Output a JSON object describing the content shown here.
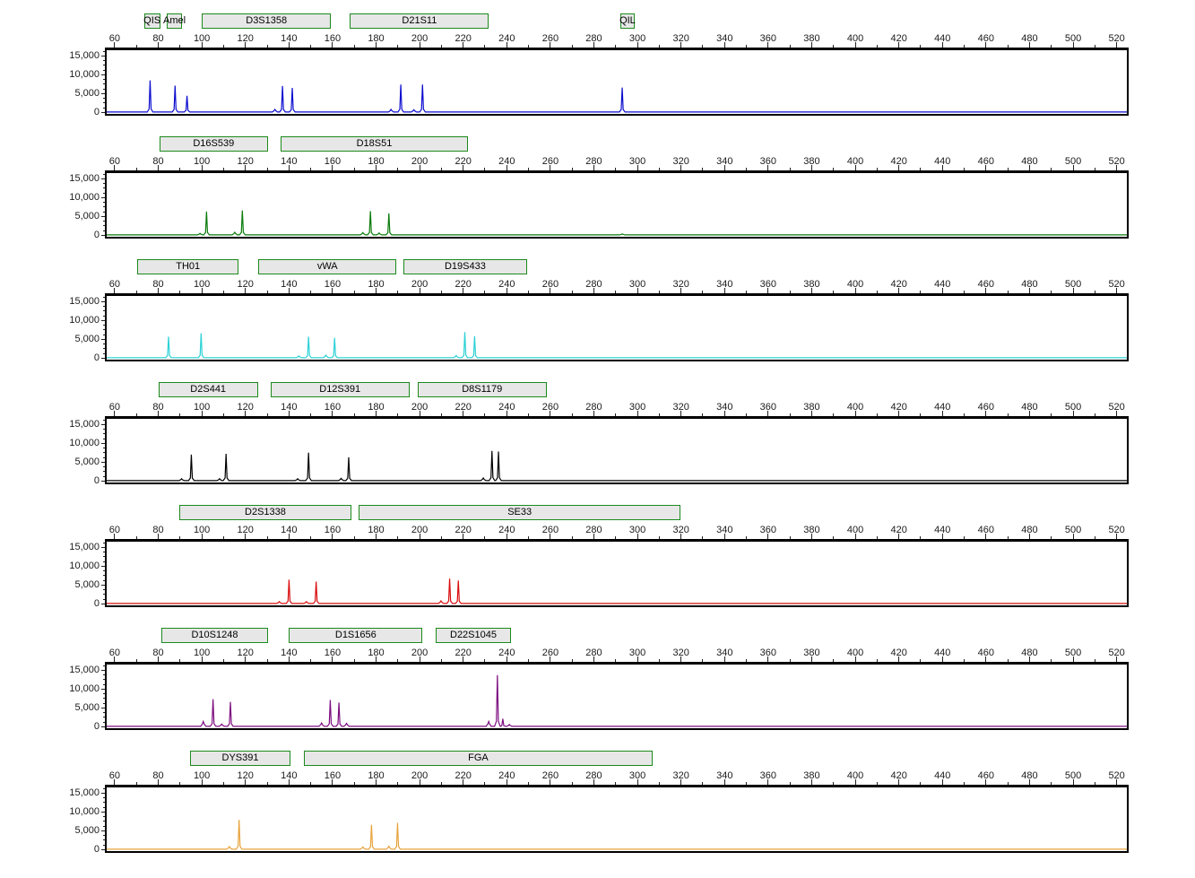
{
  "chart_data": {
    "type": "line",
    "description": "Seven-dye STR electropherogram, stacked trace panels with locus marker bars, size ruler and RFU axis",
    "x_ticks": [
      60,
      80,
      100,
      120,
      140,
      160,
      180,
      200,
      220,
      240,
      260,
      280,
      300,
      320,
      340,
      360,
      380,
      400,
      420,
      440,
      460,
      480,
      500,
      520
    ],
    "x_minor_step": 10,
    "xlim": [
      55.5,
      525.5
    ],
    "ylim": [
      -500,
      16400
    ],
    "y_ticks": [
      {
        "value": 15000,
        "label": "15,000"
      },
      {
        "value": 10000,
        "label": "10,000"
      },
      {
        "value": 5000,
        "label": "5,000"
      },
      {
        "value": 0,
        "label": "0"
      }
    ],
    "y_minor_step": 1250,
    "marker_box_fill": "#e7e7e7",
    "marker_box_border": "#1c8a1c",
    "panels": [
      {
        "dye": "blue",
        "color": "#0b0bcf",
        "markers": [
          {
            "label": "QIS",
            "range": [
              73.5,
              80
            ]
          },
          {
            "label": "Amel",
            "range": [
              84,
              90
            ]
          },
          {
            "label": "D3S1358",
            "range": [
              100,
              158.5
            ]
          },
          {
            "label": "D21S11",
            "range": [
              168,
              231
            ]
          },
          {
            "label": "QIL",
            "range": [
              292,
              298
            ]
          }
        ],
        "peaks": [
          [
            75.5,
            8400
          ],
          [
            87,
            7000
          ],
          [
            92.5,
            4300
          ],
          [
            133,
            700
          ],
          [
            136.5,
            6900
          ],
          [
            141,
            6400
          ],
          [
            186.5,
            700
          ],
          [
            191,
            7300
          ],
          [
            197,
            600
          ],
          [
            201,
            7300
          ],
          [
            293,
            6500
          ]
        ]
      },
      {
        "dye": "green",
        "color": "#0a7a0a",
        "markers": [
          {
            "label": "D16S539",
            "range": [
              80.5,
              129.5
            ]
          },
          {
            "label": "D18S51",
            "range": [
              136,
              221.5
            ]
          }
        ],
        "peaks": [
          [
            98.5,
            400
          ],
          [
            101.5,
            6200
          ],
          [
            114.5,
            700
          ],
          [
            118,
            6500
          ],
          [
            173.5,
            600
          ],
          [
            177,
            6300
          ],
          [
            181,
            500
          ],
          [
            185.5,
            5700
          ],
          [
            293,
            250
          ]
        ]
      },
      {
        "dye": "cyan",
        "color": "#2bd1d6",
        "markers": [
          {
            "label": "TH01",
            "range": [
              70.5,
              116
            ]
          },
          {
            "label": "vWA",
            "range": [
              126,
              188.5
            ]
          },
          {
            "label": "D19S433",
            "range": [
              192.5,
              248.5
            ]
          }
        ],
        "peaks": [
          [
            84,
            5600
          ],
          [
            99,
            6500
          ],
          [
            144,
            500
          ],
          [
            148.5,
            5600
          ],
          [
            156.5,
            700
          ],
          [
            160.5,
            5300
          ],
          [
            216.5,
            600
          ],
          [
            220.5,
            6800
          ],
          [
            225,
            5700
          ]
        ]
      },
      {
        "dye": "black",
        "color": "#000000",
        "markers": [
          {
            "label": "D2S441",
            "range": [
              80,
              125
            ]
          },
          {
            "label": "D12S391",
            "range": [
              131.5,
              194.5
            ]
          },
          {
            "label": "D8S1179",
            "range": [
              199,
              257.5
            ]
          }
        ],
        "peaks": [
          [
            90,
            500
          ],
          [
            94.5,
            6900
          ],
          [
            107.5,
            500
          ],
          [
            110.5,
            7100
          ],
          [
            143.5,
            500
          ],
          [
            148.5,
            7400
          ],
          [
            163.5,
            600
          ],
          [
            167,
            6200
          ],
          [
            229,
            700
          ],
          [
            233,
            7900
          ],
          [
            236,
            7700
          ]
        ]
      },
      {
        "dye": "red",
        "color": "#d90d0d",
        "markers": [
          {
            "label": "D2S1338",
            "range": [
              89.5,
              168
            ]
          },
          {
            "label": "SE33",
            "range": [
              172,
              319
            ]
          }
        ],
        "peaks": [
          [
            135,
            500
          ],
          [
            139.5,
            6300
          ],
          [
            147.5,
            500
          ],
          [
            152,
            5800
          ],
          [
            209.5,
            700
          ],
          [
            213.5,
            6600
          ],
          [
            217.5,
            6100
          ]
        ]
      },
      {
        "dye": "purple",
        "color": "#7d0d80",
        "markers": [
          {
            "label": "D10S1248",
            "range": [
              81.5,
              129.5
            ]
          },
          {
            "label": "D1S1656",
            "range": [
              140,
              200.5
            ]
          },
          {
            "label": "D22S1045",
            "range": [
              207.5,
              241
            ]
          }
        ],
        "peaks": [
          [
            100,
            1300
          ],
          [
            104.5,
            7200
          ],
          [
            108.5,
            600
          ],
          [
            112.5,
            6500
          ],
          [
            154.5,
            900
          ],
          [
            158.5,
            7000
          ],
          [
            162.5,
            6300
          ],
          [
            166,
            800
          ],
          [
            231.5,
            1300
          ],
          [
            235.5,
            13600
          ],
          [
            238,
            2000
          ],
          [
            241,
            500
          ]
        ]
      },
      {
        "dye": "orange",
        "color": "#e8a33c",
        "markers": [
          {
            "label": "DYS391",
            "range": [
              94.5,
              140
            ]
          },
          {
            "label": "FGA",
            "range": [
              147,
              306
            ]
          }
        ],
        "peaks": [
          [
            112,
            700
          ],
          [
            116.5,
            7800
          ],
          [
            173.5,
            600
          ],
          [
            177.5,
            6500
          ],
          [
            185.5,
            800
          ],
          [
            189.5,
            7000
          ]
        ]
      }
    ]
  }
}
